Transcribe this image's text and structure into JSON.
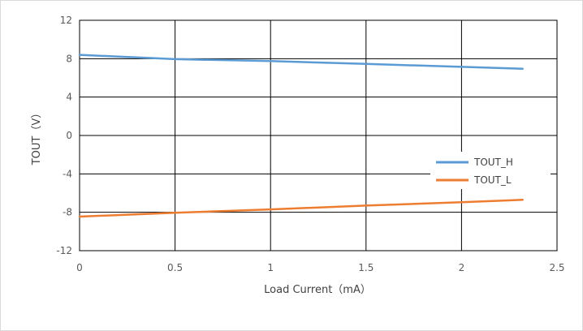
{
  "chart_data": {
    "type": "line",
    "title": "",
    "xlabel": "Load Current（mA）",
    "ylabel": "TOUT（V）",
    "xlim": [
      0,
      2.5
    ],
    "ylim": [
      -12,
      12
    ],
    "xticks": [
      0,
      0.5,
      1,
      1.5,
      2,
      2.5
    ],
    "xtick_labels": [
      "0",
      "0.5",
      "1",
      "1.5",
      "2",
      "2.5"
    ],
    "yticks": [
      12,
      8,
      4,
      0,
      -4,
      -8,
      -12
    ],
    "ytick_labels": [
      "12",
      "8",
      "4",
      "0",
      "-4",
      "-8",
      "-12"
    ],
    "grid": true,
    "legend_position": "right",
    "series": [
      {
        "name": "TOUT_H",
        "color": "#5b9bd5",
        "x": [
          0,
          0.5,
          1.0,
          1.5,
          2.0,
          2.32
        ],
        "y": [
          8.4,
          7.95,
          7.75,
          7.45,
          7.15,
          6.95
        ]
      },
      {
        "name": "TOUT_L",
        "color": "#ed7d31",
        "x": [
          0,
          0.5,
          1.0,
          1.5,
          2.0,
          2.32
        ],
        "y": [
          -8.45,
          -8.05,
          -7.7,
          -7.3,
          -6.95,
          -6.7
        ]
      }
    ]
  }
}
